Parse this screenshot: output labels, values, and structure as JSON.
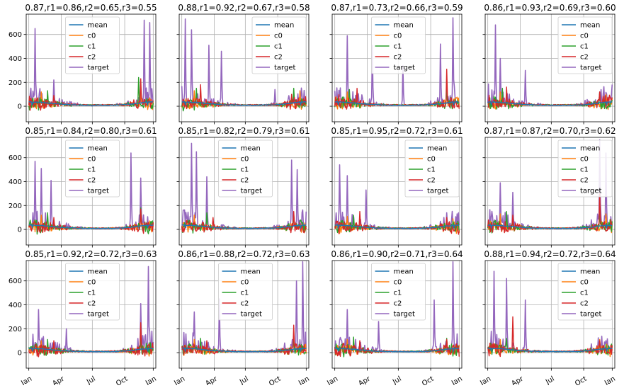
{
  "figure": {
    "series_names": [
      "mean",
      "c0",
      "c1",
      "c2",
      "target"
    ],
    "colors": {
      "mean": "#1f77b4",
      "c0": "#ff7f0e",
      "c1": "#2ca02c",
      "c2": "#d62728",
      "target": "#9467bd",
      "grid": "#b0b0b0",
      "axis": "#000000"
    },
    "x_tick_labels": [
      "Jan",
      "Apr",
      "Jul",
      "Oct",
      "Jan"
    ],
    "y_tick_labels": [
      "0",
      "200",
      "400",
      "600"
    ],
    "titles": [
      "0.87,r1=0.86,r2=0.65,r3=0.55",
      "0.88,r1=0.92,r2=0.67,r3=0.58",
      "0.87,r1=0.73,r2=0.66,r3=0.59",
      "0.86,r1=0.93,r2=0.69,r3=0.60",
      "0.85,r1=0.84,r2=0.80,r3=0.61",
      "0.85,r1=0.82,r2=0.79,r3=0.61",
      "0.85,r1=0.95,r2=0.72,r3=0.61",
      "0.87,r1=0.87,r2=0.70,r3=0.62",
      "0.85,r1=0.92,r2=0.72,r3=0.63",
      "0.86,r1=0.88,r2=0.72,r3=0.63",
      "0.86,r1=0.90,r2=0.71,r3=0.64",
      "0.88,r1=0.94,r2=0.72,r3=0.64"
    ]
  },
  "chart_data": [
    {
      "type": "line",
      "title": "0.87,r1=0.86,r2=0.65,r3=0.55",
      "ylim": [
        -130,
        770
      ],
      "grid": true,
      "legend": "top-center",
      "series": [
        {
          "name": "mean",
          "peaks": [
            [
              0.02,
              35
            ],
            [
              0.5,
              5
            ],
            [
              0.95,
              40
            ]
          ]
        },
        {
          "name": "c0",
          "peaks": [
            [
              0.1,
              120
            ],
            [
              0.9,
              150
            ]
          ]
        },
        {
          "name": "c1",
          "peaks": [
            [
              0.15,
              130
            ],
            [
              0.88,
              240
            ]
          ]
        },
        {
          "name": "c2",
          "peaks": [
            [
              0.2,
              90
            ],
            [
              0.9,
              230
            ]
          ]
        },
        {
          "name": "target",
          "peaks": [
            [
              0.05,
              650
            ],
            [
              0.2,
              220
            ],
            [
              0.93,
              720
            ],
            [
              0.97,
              700
            ]
          ]
        }
      ]
    },
    {
      "type": "line",
      "title": "0.88,r1=0.92,r2=0.67,r3=0.58",
      "ylim": [
        -130,
        770
      ],
      "grid": true,
      "legend": "top-right",
      "series": [
        {
          "name": "mean",
          "peaks": [
            [
              0.02,
              40
            ],
            [
              0.95,
              40
            ]
          ]
        },
        {
          "name": "c0",
          "peaks": [
            [
              0.1,
              130
            ],
            [
              0.95,
              130
            ]
          ]
        },
        {
          "name": "c1",
          "peaks": [
            [
              0.12,
              150
            ],
            [
              0.9,
              150
            ]
          ]
        },
        {
          "name": "c2",
          "peaks": [
            [
              0.15,
              180
            ],
            [
              0.88,
              100
            ]
          ]
        },
        {
          "name": "target",
          "peaks": [
            [
              0.03,
              730
            ],
            [
              0.08,
              640
            ],
            [
              0.22,
              510
            ],
            [
              0.32,
              460
            ],
            [
              0.75,
              140
            ]
          ]
        }
      ]
    },
    {
      "type": "line",
      "title": "0.87,r1=0.73,r2=0.66,r3=0.59",
      "ylim": [
        -130,
        770
      ],
      "grid": true,
      "legend": "top-center",
      "series": [
        {
          "name": "mean",
          "peaks": [
            [
              0.02,
              40
            ],
            [
              0.95,
              40
            ]
          ]
        },
        {
          "name": "c0",
          "peaks": [
            [
              0.1,
              120
            ],
            [
              0.9,
              140
            ]
          ]
        },
        {
          "name": "c1",
          "peaks": [
            [
              0.12,
              140
            ],
            [
              0.9,
              160
            ]
          ]
        },
        {
          "name": "c2",
          "peaks": [
            [
              0.18,
              150
            ],
            [
              0.9,
              310
            ]
          ]
        },
        {
          "name": "target",
          "peaks": [
            [
              0.1,
              590
            ],
            [
              0.3,
              510
            ],
            [
              0.55,
              340
            ],
            [
              0.85,
              520
            ],
            [
              0.95,
              740
            ]
          ]
        }
      ]
    },
    {
      "type": "line",
      "title": "0.86,r1=0.93,r2=0.69,r3=0.60",
      "ylim": [
        -130,
        770
      ],
      "grid": true,
      "legend": "top-right",
      "series": [
        {
          "name": "mean",
          "peaks": [
            [
              0.02,
              40
            ],
            [
              0.95,
              40
            ]
          ]
        },
        {
          "name": "c0",
          "peaks": [
            [
              0.1,
              120
            ],
            [
              0.95,
              100
            ]
          ]
        },
        {
          "name": "c1",
          "peaks": [
            [
              0.12,
              150
            ],
            [
              0.9,
              110
            ]
          ]
        },
        {
          "name": "c2",
          "peaks": [
            [
              0.15,
              160
            ],
            [
              0.9,
              120
            ]
          ]
        },
        {
          "name": "target",
          "peaks": [
            [
              0.06,
              680
            ],
            [
              0.1,
              400
            ],
            [
              0.3,
              300
            ],
            [
              0.9,
              120
            ]
          ]
        }
      ]
    },
    {
      "type": "line",
      "title": "0.85,r1=0.84,r2=0.80,r3=0.61",
      "ylim": [
        -130,
        770
      ],
      "grid": true,
      "legend": "top-center",
      "series": [
        {
          "name": "mean",
          "peaks": [
            [
              0.02,
              40
            ],
            [
              0.95,
              40
            ]
          ]
        },
        {
          "name": "c0",
          "peaks": [
            [
              0.1,
              120
            ],
            [
              0.9,
              150
            ]
          ]
        },
        {
          "name": "c1",
          "peaks": [
            [
              0.15,
              140
            ],
            [
              0.9,
              180
            ]
          ]
        },
        {
          "name": "c2",
          "peaks": [
            [
              0.2,
              100
            ],
            [
              0.9,
              170
            ]
          ]
        },
        {
          "name": "target",
          "peaks": [
            [
              0.05,
              570
            ],
            [
              0.1,
              510
            ],
            [
              0.18,
              410
            ],
            [
              0.82,
              640
            ],
            [
              0.9,
              430
            ]
          ]
        }
      ]
    },
    {
      "type": "line",
      "title": "0.85,r1=0.82,r2=0.79,r3=0.61",
      "ylim": [
        -130,
        770
      ],
      "grid": true,
      "legend": "top-center",
      "series": [
        {
          "name": "mean",
          "peaks": [
            [
              0.02,
              40
            ],
            [
              0.95,
              40
            ]
          ]
        },
        {
          "name": "c0",
          "peaks": [
            [
              0.1,
              120
            ],
            [
              0.9,
              130
            ]
          ]
        },
        {
          "name": "c1",
          "peaks": [
            [
              0.2,
              140
            ],
            [
              0.9,
              120
            ]
          ]
        },
        {
          "name": "c2",
          "peaks": [
            [
              0.25,
              100
            ],
            [
              0.9,
              150
            ]
          ]
        },
        {
          "name": "target",
          "peaks": [
            [
              0.08,
              720
            ],
            [
              0.12,
              650
            ],
            [
              0.2,
              440
            ],
            [
              0.88,
              580
            ],
            [
              0.93,
              500
            ]
          ]
        }
      ]
    },
    {
      "type": "line",
      "title": "0.85,r1=0.95,r2=0.72,r3=0.61",
      "ylim": [
        -130,
        770
      ],
      "grid": true,
      "legend": "top-right",
      "series": [
        {
          "name": "mean",
          "peaks": [
            [
              0.02,
              40
            ],
            [
              0.95,
              40
            ]
          ]
        },
        {
          "name": "c0",
          "peaks": [
            [
              0.1,
              110
            ],
            [
              0.95,
              90
            ]
          ]
        },
        {
          "name": "c1",
          "peaks": [
            [
              0.15,
              120
            ],
            [
              0.9,
              90
            ]
          ]
        },
        {
          "name": "c2",
          "peaks": [
            [
              0.2,
              150
            ],
            [
              0.9,
              100
            ]
          ]
        },
        {
          "name": "target",
          "peaks": [
            [
              0.04,
              540
            ],
            [
              0.1,
              450
            ],
            [
              0.25,
              330
            ],
            [
              0.9,
              140
            ]
          ]
        }
      ]
    },
    {
      "type": "line",
      "title": "0.87,r1=0.87,r2=0.70,r3=0.62",
      "ylim": [
        -130,
        770
      ],
      "grid": true,
      "legend": "top-right",
      "series": [
        {
          "name": "mean",
          "peaks": [
            [
              0.02,
              40
            ],
            [
              0.95,
              40
            ]
          ]
        },
        {
          "name": "c0",
          "peaks": [
            [
              0.1,
              130
            ],
            [
              0.95,
              130
            ]
          ]
        },
        {
          "name": "c1",
          "peaks": [
            [
              0.15,
              150
            ],
            [
              0.9,
              150
            ]
          ]
        },
        {
          "name": "c2",
          "peaks": [
            [
              0.2,
              120
            ],
            [
              0.9,
              300
            ]
          ]
        },
        {
          "name": "target",
          "peaks": [
            [
              0.1,
              390
            ],
            [
              0.2,
              310
            ],
            [
              0.9,
              750
            ],
            [
              0.95,
              640
            ]
          ]
        }
      ]
    },
    {
      "type": "line",
      "title": "0.85,r1=0.92,r2=0.72,r3=0.63",
      "ylim": [
        -130,
        770
      ],
      "grid": true,
      "legend": "top-center",
      "series": [
        {
          "name": "mean",
          "peaks": [
            [
              0.02,
              40
            ],
            [
              0.95,
              40
            ]
          ]
        },
        {
          "name": "c0",
          "peaks": [
            [
              0.1,
              100
            ],
            [
              0.9,
              110
            ]
          ]
        },
        {
          "name": "c1",
          "peaks": [
            [
              0.15,
              110
            ],
            [
              0.9,
              130
            ]
          ]
        },
        {
          "name": "c2",
          "peaks": [
            [
              0.2,
              100
            ],
            [
              0.9,
              250
            ]
          ]
        },
        {
          "name": "target",
          "peaks": [
            [
              0.08,
              360
            ],
            [
              0.3,
              200
            ],
            [
              0.9,
              410
            ],
            [
              0.96,
              720
            ]
          ]
        }
      ]
    },
    {
      "type": "line",
      "title": "0.86,r1=0.88,r2=0.72,r3=0.63",
      "ylim": [
        -130,
        770
      ],
      "grid": true,
      "legend": "top-center",
      "series": [
        {
          "name": "mean",
          "peaks": [
            [
              0.02,
              40
            ],
            [
              0.95,
              40
            ]
          ]
        },
        {
          "name": "c0",
          "peaks": [
            [
              0.1,
              110
            ],
            [
              0.9,
              120
            ]
          ]
        },
        {
          "name": "c1",
          "peaks": [
            [
              0.15,
              120
            ],
            [
              0.9,
              140
            ]
          ]
        },
        {
          "name": "c2",
          "peaks": [
            [
              0.2,
              100
            ],
            [
              0.9,
              230
            ]
          ]
        },
        {
          "name": "target",
          "peaks": [
            [
              0.1,
              340
            ],
            [
              0.3,
              450
            ],
            [
              0.92,
              600
            ],
            [
              0.97,
              760
            ]
          ]
        }
      ]
    },
    {
      "type": "line",
      "title": "0.86,r1=0.90,r2=0.71,r3=0.64",
      "ylim": [
        -130,
        770
      ],
      "grid": true,
      "legend": "top-center",
      "series": [
        {
          "name": "mean",
          "peaks": [
            [
              0.02,
              40
            ],
            [
              0.95,
              40
            ]
          ]
        },
        {
          "name": "c0",
          "peaks": [
            [
              0.1,
              110
            ],
            [
              0.9,
              110
            ]
          ]
        },
        {
          "name": "c1",
          "peaks": [
            [
              0.15,
              130
            ],
            [
              0.9,
              120
            ]
          ]
        },
        {
          "name": "c2",
          "peaks": [
            [
              0.2,
              100
            ],
            [
              0.9,
              110
            ]
          ]
        },
        {
          "name": "target",
          "peaks": [
            [
              0.1,
              360
            ],
            [
              0.35,
              260
            ],
            [
              0.8,
              440
            ],
            [
              0.95,
              760
            ]
          ]
        }
      ]
    },
    {
      "type": "line",
      "title": "0.88,r1=0.94,r2=0.72,r3=0.64",
      "ylim": [
        -130,
        770
      ],
      "grid": true,
      "legend": "top-right",
      "series": [
        {
          "name": "mean",
          "peaks": [
            [
              0.02,
              40
            ],
            [
              0.95,
              40
            ]
          ]
        },
        {
          "name": "c0",
          "peaks": [
            [
              0.1,
              110
            ],
            [
              0.9,
              110
            ]
          ]
        },
        {
          "name": "c1",
          "peaks": [
            [
              0.15,
              120
            ],
            [
              0.9,
              90
            ]
          ]
        },
        {
          "name": "c2",
          "peaks": [
            [
              0.2,
              300
            ],
            [
              0.9,
              100
            ]
          ]
        },
        {
          "name": "target",
          "peaks": [
            [
              0.05,
              680
            ],
            [
              0.15,
              620
            ],
            [
              0.3,
              440
            ],
            [
              0.95,
              100
            ]
          ]
        }
      ]
    }
  ]
}
